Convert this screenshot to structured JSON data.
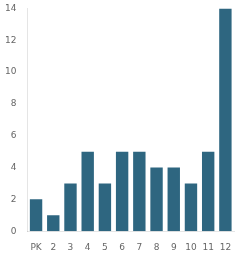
{
  "chart_data": {
    "type": "bar",
    "categories": [
      "PK",
      "2",
      "3",
      "4",
      "5",
      "6",
      "7",
      "8",
      "9",
      "10",
      "11",
      "12"
    ],
    "values": [
      2,
      1,
      3,
      5,
      3,
      5,
      5,
      4,
      4,
      3,
      5,
      14
    ],
    "color": "#2e6680",
    "ylim": [
      0,
      14
    ],
    "yticks": [
      0,
      2,
      4,
      6,
      8,
      10,
      12,
      14
    ],
    "grid": false
  }
}
